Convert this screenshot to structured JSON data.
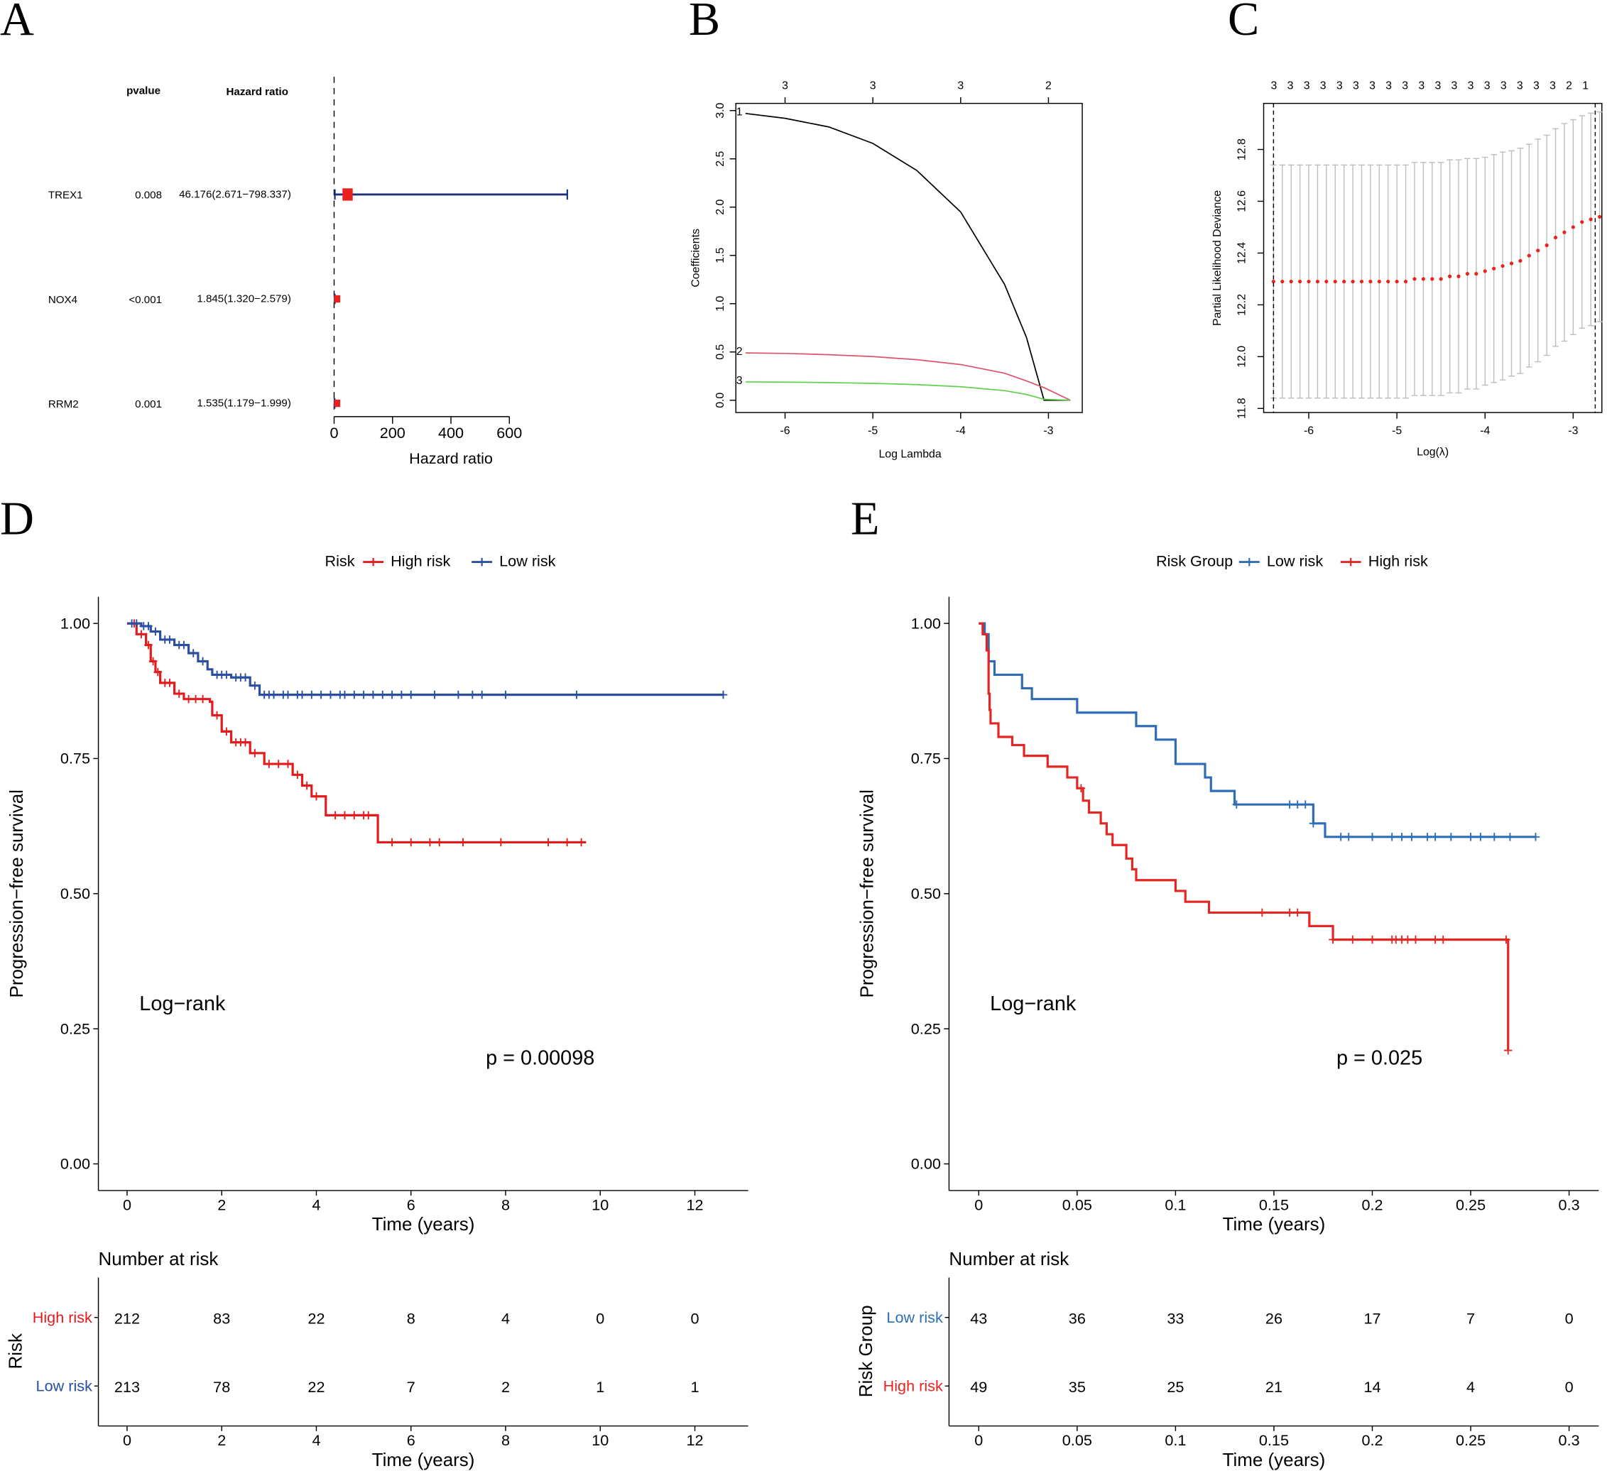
{
  "panel_labels": [
    "A",
    "B",
    "C",
    "D",
    "E"
  ],
  "chart_data": [
    {
      "id": "A",
      "type": "forest",
      "headers": {
        "pvalue": "pvalue",
        "hr": "Hazard ratio"
      },
      "rows": [
        {
          "gene": "TREX1",
          "pvalue": "0.008",
          "hr_text": "46.176(2.671−798.337)",
          "hr": 46.176,
          "lo": 2.671,
          "hi": 798.337
        },
        {
          "gene": "NOX4",
          "pvalue": "<0.001",
          "hr_text": "1.845(1.320−2.579)",
          "hr": 1.845,
          "lo": 1.32,
          "hi": 2.579
        },
        {
          "gene": "RRM2",
          "pvalue": "0.001",
          "hr_text": "1.535(1.179−1.999)",
          "hr": 1.535,
          "lo": 1.179,
          "hi": 1.999
        }
      ],
      "xticks": [
        "0",
        "200",
        "400",
        "600"
      ],
      "xlim": [
        0,
        600
      ],
      "reference_line": 1,
      "xlabel": "Hazard ratio",
      "colors": {
        "box": "#e8231e",
        "ci": "#1f2f7a"
      }
    },
    {
      "id": "B",
      "type": "line",
      "xlabel": "Log Lambda",
      "ylabel": "Coefficients",
      "xticks": [
        "-6",
        "-5",
        "-4",
        "-3"
      ],
      "yticks": [
        "0.0",
        "0.5",
        "1.0",
        "1.5",
        "2.0",
        "2.5",
        "3.0"
      ],
      "top_labels": [
        "3",
        "3",
        "3",
        "2"
      ],
      "xlim": [
        -6.55,
        -2.6
      ],
      "ylim": [
        -0.1,
        3.05
      ],
      "x": [
        -6.45,
        -6.0,
        -5.5,
        -5.0,
        -4.5,
        -4.0,
        -3.5,
        -3.25,
        -3.05,
        -2.75
      ],
      "series": [
        {
          "name": "1",
          "color": "#000000",
          "values": [
            2.97,
            2.92,
            2.83,
            2.66,
            2.38,
            1.95,
            1.2,
            0.65,
            0,
            0
          ]
        },
        {
          "name": "2",
          "color": "#df536b",
          "values": [
            0.49,
            0.485,
            0.472,
            0.452,
            0.42,
            0.37,
            0.28,
            0.2,
            0.13,
            0
          ]
        },
        {
          "name": "3",
          "color": "#61d04f",
          "values": [
            0.19,
            0.188,
            0.183,
            0.175,
            0.162,
            0.14,
            0.1,
            0.06,
            0.01,
            0
          ]
        }
      ]
    },
    {
      "id": "C",
      "type": "scatter",
      "xlabel": "Log(λ)",
      "ylabel": "Partial Likelihood Deviance",
      "xticks": [
        "-6",
        "-5",
        "-4",
        "-3"
      ],
      "yticks": [
        "11.8",
        "12.0",
        "12.2",
        "12.4",
        "12.6",
        "12.8"
      ],
      "top_labels": [
        "3",
        "3",
        "3",
        "3",
        "3",
        "3",
        "3",
        "3",
        "3",
        "3",
        "3",
        "3",
        "3",
        "3",
        "3",
        "3",
        "3",
        "3",
        "2",
        "1"
      ],
      "vlines": [
        -6.4,
        -2.75
      ],
      "x": [
        -6.4,
        -6.3,
        -6.2,
        -6.1,
        -6.0,
        -5.9,
        -5.8,
        -5.7,
        -5.6,
        -5.5,
        -5.4,
        -5.3,
        -5.2,
        -5.1,
        -5.0,
        -4.9,
        -4.8,
        -4.7,
        -4.6,
        -4.5,
        -4.4,
        -4.3,
        -4.2,
        -4.1,
        -4.0,
        -3.9,
        -3.8,
        -3.7,
        -3.6,
        -3.5,
        -3.4,
        -3.3,
        -3.2,
        -3.1,
        -3.0,
        -2.9,
        -2.8,
        -2.7
      ],
      "mean": [
        12.29,
        12.29,
        12.29,
        12.29,
        12.29,
        12.29,
        12.29,
        12.29,
        12.29,
        12.29,
        12.29,
        12.29,
        12.29,
        12.29,
        12.29,
        12.29,
        12.3,
        12.3,
        12.3,
        12.3,
        12.31,
        12.31,
        12.32,
        12.32,
        12.33,
        12.34,
        12.35,
        12.36,
        12.37,
        12.39,
        12.41,
        12.43,
        12.46,
        12.48,
        12.5,
        12.52,
        12.53,
        12.54
      ],
      "se": [
        0.45,
        0.45,
        0.45,
        0.45,
        0.45,
        0.45,
        0.45,
        0.45,
        0.45,
        0.45,
        0.45,
        0.45,
        0.45,
        0.45,
        0.45,
        0.45,
        0.45,
        0.45,
        0.45,
        0.45,
        0.45,
        0.45,
        0.445,
        0.445,
        0.44,
        0.44,
        0.44,
        0.435,
        0.435,
        0.43,
        0.43,
        0.425,
        0.42,
        0.42,
        0.415,
        0.41,
        0.41,
        0.405
      ],
      "colors": {
        "point": "#e8231e",
        "bar": "#bfbfbf"
      }
    },
    {
      "id": "D",
      "type": "km",
      "legend_title": "Risk",
      "xlabel": "Time (years)",
      "ylabel": "Progression−free survival",
      "xticks": [
        "0",
        "2",
        "4",
        "6",
        "8",
        "10",
        "12"
      ],
      "xlim": [
        0,
        12
      ],
      "yticks": [
        "0.00",
        "0.25",
        "0.50",
        "0.75",
        "1.00"
      ],
      "annotation": "Log−rank",
      "pvalue": "p = 0.00098",
      "groups": [
        {
          "name": "High risk",
          "color": "#e41a1c",
          "steps": [
            [
              0,
              1
            ],
            [
              0.2,
              0.98
            ],
            [
              0.4,
              0.96
            ],
            [
              0.5,
              0.93
            ],
            [
              0.6,
              0.91
            ],
            [
              0.7,
              0.89
            ],
            [
              1.0,
              0.87
            ],
            [
              1.2,
              0.86
            ],
            [
              1.75,
              0.855
            ],
            [
              1.8,
              0.83
            ],
            [
              2.0,
              0.8
            ],
            [
              2.2,
              0.78
            ],
            [
              2.6,
              0.76
            ],
            [
              2.9,
              0.74
            ],
            [
              3.5,
              0.72
            ],
            [
              3.7,
              0.7
            ],
            [
              3.9,
              0.68
            ],
            [
              4.2,
              0.645
            ],
            [
              5.3,
              0.595
            ]
          ],
          "end": 9.7,
          "censor": [
            0.15,
            0.3,
            0.45,
            0.55,
            0.65,
            0.8,
            0.9,
            1.1,
            1.3,
            1.45,
            1.6,
            1.9,
            2.1,
            2.3,
            2.4,
            2.5,
            2.7,
            3.0,
            3.2,
            3.4,
            3.6,
            3.8,
            4.0,
            4.4,
            4.6,
            4.8,
            5.0,
            5.1,
            5.6,
            6.0,
            6.4,
            6.6,
            7.1,
            7.9,
            8.9,
            9.3,
            9.6
          ]
        },
        {
          "name": "Low risk",
          "color": "#2a4ea0",
          "steps": [
            [
              0,
              1
            ],
            [
              0.3,
              0.995
            ],
            [
              0.5,
              0.985
            ],
            [
              0.7,
              0.97
            ],
            [
              1.0,
              0.96
            ],
            [
              1.3,
              0.945
            ],
            [
              1.5,
              0.93
            ],
            [
              1.7,
              0.915
            ],
            [
              1.8,
              0.905
            ],
            [
              2.2,
              0.9
            ],
            [
              2.6,
              0.885
            ],
            [
              2.8,
              0.868
            ]
          ],
          "end": 12.6,
          "censor": [
            0.1,
            0.2,
            0.35,
            0.45,
            0.6,
            0.8,
            0.9,
            1.1,
            1.2,
            1.4,
            1.6,
            1.9,
            2.0,
            2.1,
            2.3,
            2.4,
            2.5,
            2.7,
            2.9,
            3.0,
            3.1,
            3.3,
            3.4,
            3.6,
            3.7,
            3.9,
            4.1,
            4.3,
            4.5,
            4.6,
            4.8,
            5.0,
            5.2,
            5.4,
            5.6,
            5.8,
            6.0,
            6.5,
            7.0,
            7.3,
            7.5,
            8.0,
            9.5,
            12.6
          ]
        }
      ],
      "risk_table": {
        "title": "Number at risk",
        "ylabel": "Risk",
        "rows": [
          {
            "name": "High risk",
            "color": "#e41a1c",
            "values": [
              "212",
              "83",
              "22",
              "8",
              "4",
              "0",
              "0"
            ]
          },
          {
            "name": "Low risk",
            "color": "#2a4ea0",
            "values": [
              "213",
              "78",
              "22",
              "7",
              "2",
              "1",
              "1"
            ]
          }
        ]
      }
    },
    {
      "id": "E",
      "type": "km",
      "legend_title": "Risk Group",
      "xlabel": "Time (years)",
      "ylabel": "Progression−free survival",
      "xticks": [
        "0",
        "0.05",
        "0.1",
        "0.15",
        "0.2",
        "0.25",
        "0.3"
      ],
      "xlim": [
        0,
        0.3
      ],
      "yticks": [
        "0.00",
        "0.25",
        "0.50",
        "0.75",
        "1.00"
      ],
      "annotation": "Log−rank",
      "pvalue": "p = 0.025",
      "groups": [
        {
          "name": "Low risk",
          "color": "#2e6cb5",
          "steps": [
            [
              0,
              1
            ],
            [
              0.003,
              0.98
            ],
            [
              0.005,
              0.93
            ],
            [
              0.008,
              0.905
            ],
            [
              0.022,
              0.88
            ],
            [
              0.027,
              0.86
            ],
            [
              0.05,
              0.835
            ],
            [
              0.08,
              0.81
            ],
            [
              0.09,
              0.785
            ],
            [
              0.1,
              0.74
            ],
            [
              0.115,
              0.715
            ],
            [
              0.118,
              0.69
            ],
            [
              0.13,
              0.665
            ],
            [
              0.17,
              0.63
            ],
            [
              0.176,
              0.605
            ]
          ],
          "end": 0.283,
          "censor": [
            0.131,
            0.158,
            0.162,
            0.166,
            0.17,
            0.184,
            0.188,
            0.2,
            0.21,
            0.215,
            0.22,
            0.228,
            0.232,
            0.24,
            0.25,
            0.255,
            0.262,
            0.27,
            0.283
          ]
        },
        {
          "name": "High risk",
          "color": "#e52521",
          "steps": [
            [
              0,
              1
            ],
            [
              0.002,
              0.98
            ],
            [
              0.004,
              0.95
            ],
            [
              0.005,
              0.87
            ],
            [
              0.0055,
              0.84
            ],
            [
              0.006,
              0.815
            ],
            [
              0.01,
              0.79
            ],
            [
              0.017,
              0.775
            ],
            [
              0.023,
              0.755
            ],
            [
              0.035,
              0.735
            ],
            [
              0.045,
              0.715
            ],
            [
              0.05,
              0.695
            ],
            [
              0.053,
              0.672
            ],
            [
              0.056,
              0.65
            ],
            [
              0.062,
              0.63
            ],
            [
              0.065,
              0.61
            ],
            [
              0.068,
              0.59
            ],
            [
              0.075,
              0.565
            ],
            [
              0.078,
              0.545
            ],
            [
              0.08,
              0.525
            ],
            [
              0.1,
              0.505
            ],
            [
              0.105,
              0.485
            ],
            [
              0.117,
              0.465
            ],
            [
              0.168,
              0.44
            ],
            [
              0.18,
              0.415
            ],
            [
              0.269,
              0.21
            ]
          ],
          "end": 0.269,
          "censor": [
            0.052,
            0.144,
            0.158,
            0.162,
            0.18,
            0.19,
            0.2,
            0.21,
            0.212,
            0.215,
            0.218,
            0.222,
            0.232,
            0.236,
            0.268,
            0.269
          ]
        }
      ],
      "risk_table": {
        "title": "Number at risk",
        "ylabel": "Risk Group",
        "rows": [
          {
            "name": "Low risk",
            "color": "#2e6cb5",
            "values": [
              "43",
              "36",
              "33",
              "26",
              "17",
              "7",
              "0"
            ]
          },
          {
            "name": "High risk",
            "color": "#e52521",
            "values": [
              "49",
              "35",
              "25",
              "21",
              "14",
              "4",
              "0"
            ]
          }
        ]
      }
    }
  ]
}
